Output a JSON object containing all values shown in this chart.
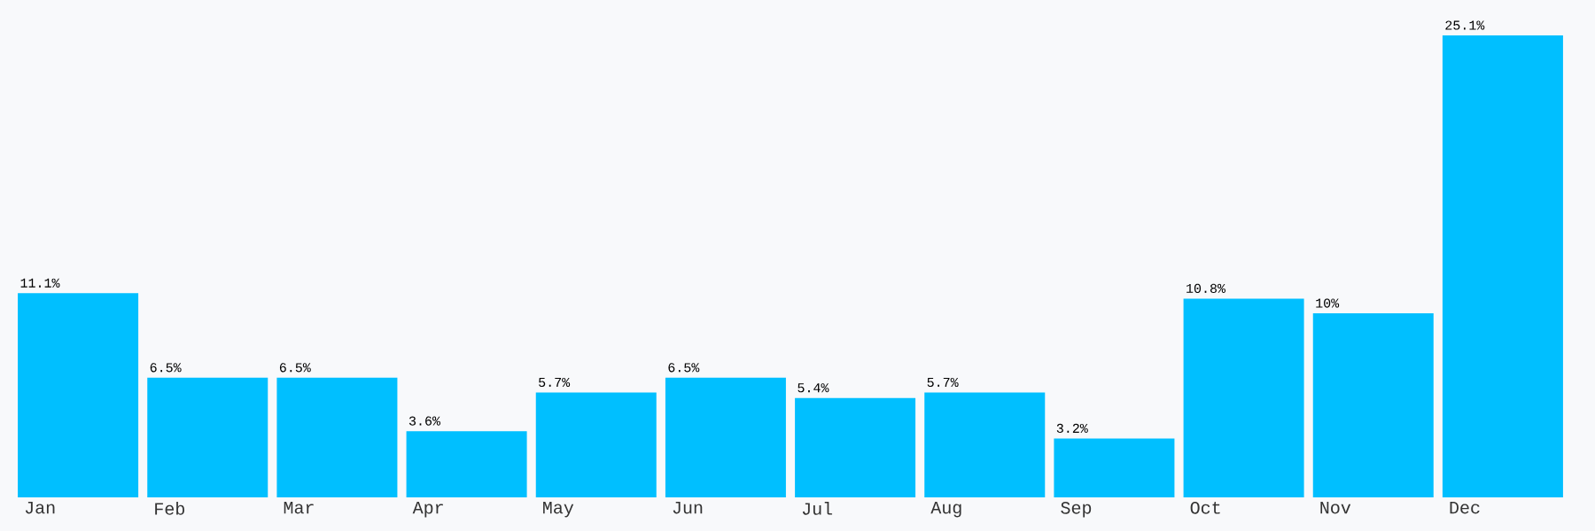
{
  "chart_data": {
    "type": "bar",
    "categories": [
      "Jan",
      "Feb",
      "Mar",
      "Apr",
      "May",
      "Jun",
      "Jul",
      "Aug",
      "Sep",
      "Oct",
      "Nov",
      "Dec"
    ],
    "values": [
      11.1,
      6.5,
      6.5,
      3.6,
      5.7,
      6.5,
      5.4,
      5.7,
      3.2,
      10.8,
      10,
      25.1
    ],
    "value_labels": [
      "11.1%",
      "6.5%",
      "6.5%",
      "3.6%",
      "5.7%",
      "6.5%",
      "5.4%",
      "5.7%",
      "3.2%",
      "10.8%",
      "10%",
      "25.1%"
    ],
    "color": "#00bfff"
  }
}
